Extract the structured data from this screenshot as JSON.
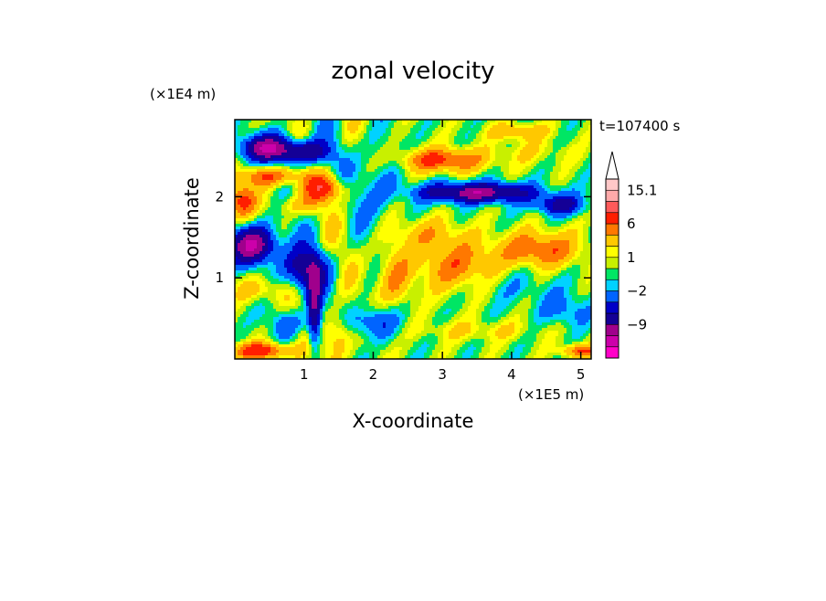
{
  "chart_data": {
    "type": "heatmap",
    "title": "zonal velocity",
    "xlabel": "X-coordinate",
    "ylabel": "Z-coordinate",
    "x_scale_label": "(×1E5 m)",
    "y_scale_label": "(×1E4 m)",
    "annotation": "t=107400 s",
    "xlim": [
      0,
      5.15
    ],
    "ylim": [
      0,
      2.95
    ],
    "x_ticks": [
      1,
      2,
      3,
      4,
      5
    ],
    "x_tick_labels": [
      "1",
      "2",
      "3",
      "4",
      "5"
    ],
    "y_ticks": [
      1,
      2
    ],
    "y_tick_labels": [
      "1",
      "2"
    ],
    "colorbar": {
      "levels": [
        -15.1,
        -12,
        -9,
        -6,
        -4,
        -2,
        -1,
        0,
        1,
        2,
        4,
        6,
        9,
        12,
        15.1
      ],
      "colors": [
        "#ff00c8",
        "#cc00aa",
        "#a0008c",
        "#140096",
        "#0000c8",
        "#0064ff",
        "#00d2ff",
        "#00e664",
        "#c8f000",
        "#ffff00",
        "#ffc800",
        "#ff7800",
        "#ff1e00",
        "#ff5a5a",
        "#ffaaaa",
        "#ffc8c8"
      ],
      "labeled_levels": [
        "15.1",
        "6",
        "1",
        "-2",
        "-9"
      ],
      "labels": [
        "15.1",
        "6",
        "1",
        "−2",
        "−9"
      ],
      "extend_top": true
    },
    "field_components": [
      {
        "x": 0.45,
        "z": 2.6,
        "sx": 0.35,
        "sz": 0.16,
        "a": -11
      },
      {
        "x": 1.0,
        "z": 2.55,
        "sx": 0.35,
        "sz": 0.14,
        "a": -9
      },
      {
        "x": 0.5,
        "z": 2.25,
        "sx": 0.45,
        "sz": 0.12,
        "a": 6
      },
      {
        "x": 1.3,
        "z": 2.1,
        "sx": 0.3,
        "sz": 0.15,
        "a": 7
      },
      {
        "x": 0.25,
        "z": 1.4,
        "sx": 0.35,
        "sz": 0.22,
        "a": -12
      },
      {
        "x": 1.0,
        "z": 1.1,
        "sx": 0.3,
        "sz": 0.25,
        "a": -8
      },
      {
        "x": 0.35,
        "z": 0.85,
        "sx": 0.35,
        "sz": 0.15,
        "a": 3
      },
      {
        "x": 0.9,
        "z": 1.9,
        "sx": 0.3,
        "sz": 0.12,
        "a": 3
      },
      {
        "x": 3.0,
        "z": 2.45,
        "sx": 0.6,
        "sz": 0.14,
        "a": 7
      },
      {
        "x": 3.5,
        "z": 2.05,
        "sx": 0.8,
        "sz": 0.12,
        "a": -11
      },
      {
        "x": 4.7,
        "z": 1.9,
        "sx": 0.35,
        "sz": 0.12,
        "a": -7
      },
      {
        "x": 3.2,
        "z": 1.15,
        "sx": 0.55,
        "sz": 0.3,
        "a": 5
      },
      {
        "x": 4.4,
        "z": 1.35,
        "sx": 0.6,
        "sz": 0.22,
        "a": 6
      },
      {
        "x": 2.8,
        "z": 1.55,
        "sx": 0.5,
        "sz": 0.18,
        "a": 3
      },
      {
        "x": 4.1,
        "z": 0.9,
        "sx": 0.65,
        "sz": 0.25,
        "a": -1.5
      },
      {
        "x": 4.8,
        "z": 0.6,
        "sx": 0.35,
        "sz": 0.2,
        "a": -3
      },
      {
        "x": 2.3,
        "z": 1.0,
        "sx": 0.25,
        "sz": 0.4,
        "a": 4
      },
      {
        "x": 2.0,
        "z": 0.45,
        "sx": 0.35,
        "sz": 0.2,
        "a": -5
      },
      {
        "x": 3.5,
        "z": 0.35,
        "sx": 0.9,
        "sz": 0.12,
        "a": 2
      },
      {
        "x": 0.4,
        "z": 0.1,
        "sx": 0.45,
        "sz": 0.1,
        "a": 8
      },
      {
        "x": 5.0,
        "z": 0.1,
        "sx": 0.3,
        "sz": 0.08,
        "a": 6
      },
      {
        "x": 0.8,
        "z": 0.45,
        "sx": 0.3,
        "sz": 0.15,
        "a": -3
      },
      {
        "x": 1.5,
        "z": 0.3,
        "sx": 0.2,
        "sz": 0.3,
        "a": 5
      },
      {
        "x": 1.15,
        "z": 0.6,
        "sx": 0.1,
        "sz": 0.5,
        "a": -9
      },
      {
        "x": 4.3,
        "z": 2.55,
        "sx": 0.6,
        "sz": 0.15,
        "a": 1.5
      },
      {
        "x": 4.1,
        "z": 2.8,
        "sx": 0.4,
        "sz": 0.1,
        "a": 4
      },
      {
        "x": 0.1,
        "z": 1.95,
        "sx": 0.2,
        "sz": 0.2,
        "a": 7
      },
      {
        "x": 2.05,
        "z": 2.2,
        "sx": 0.3,
        "sz": 0.5,
        "a": -2.5
      }
    ]
  }
}
